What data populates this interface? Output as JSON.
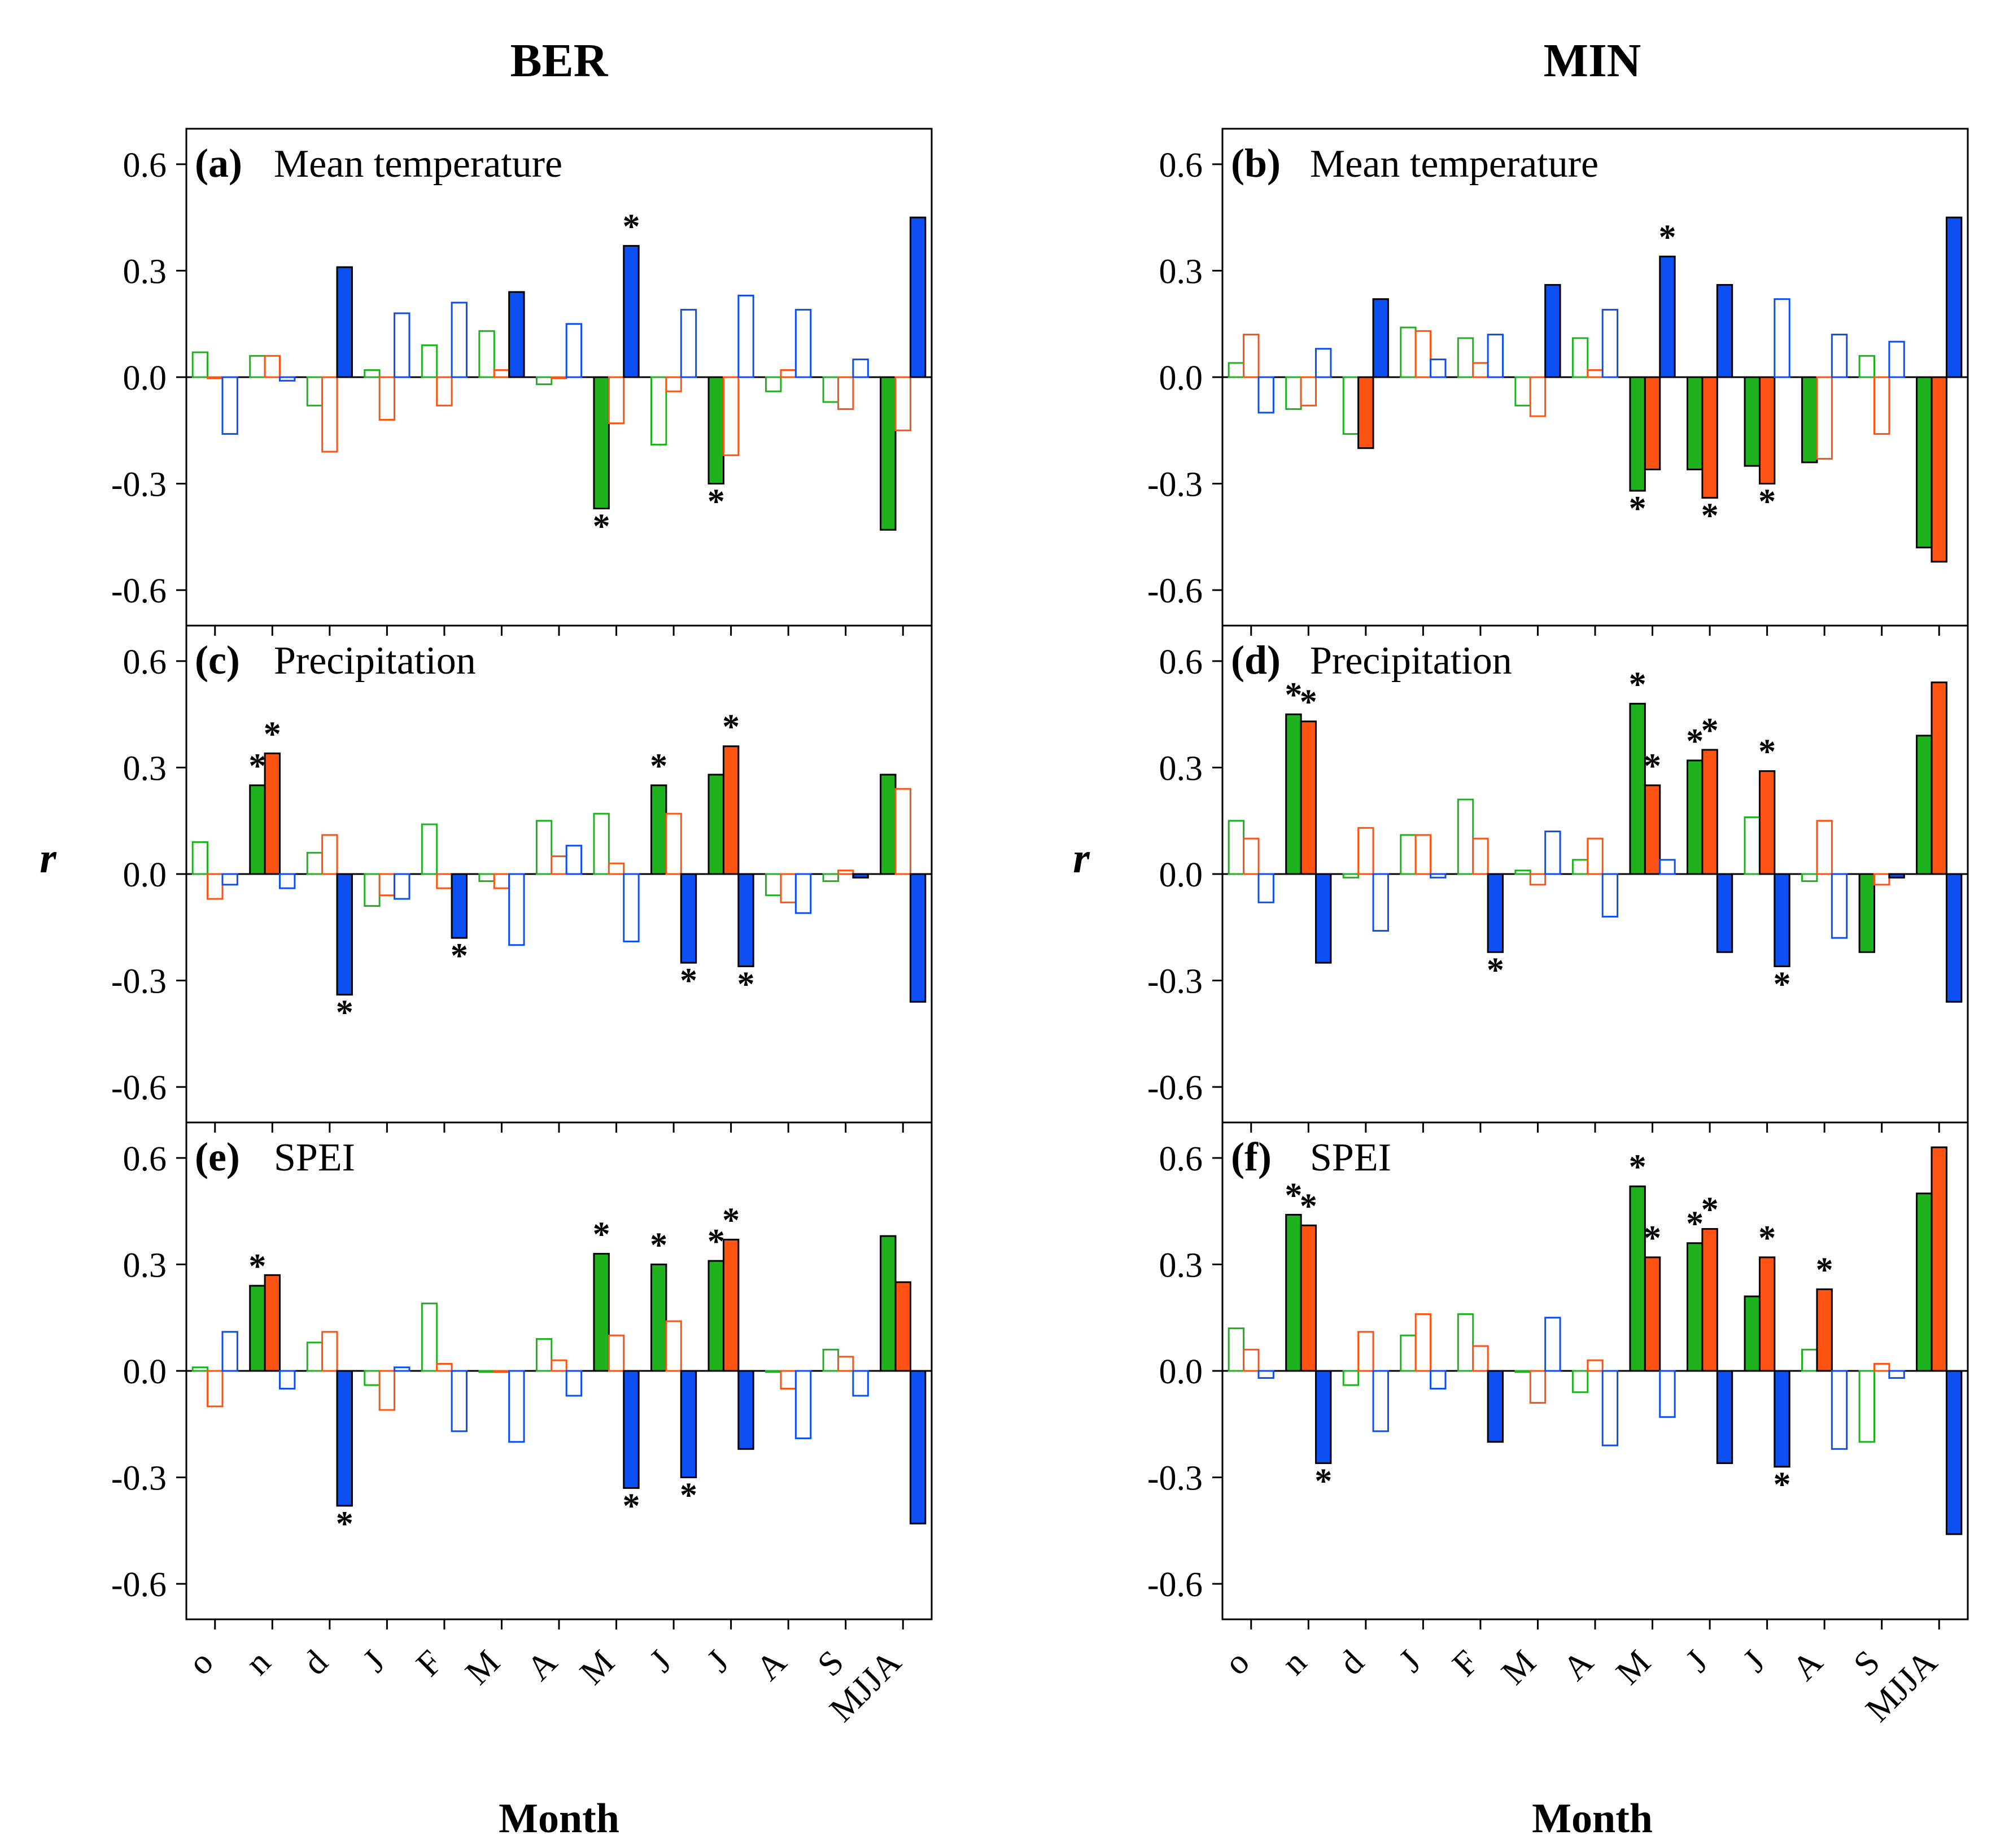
{
  "colors": {
    "green": "#1fb21f",
    "orange": "#ff5313",
    "blue": "#0c4ff2"
  },
  "columns": [
    "BER",
    "MIN"
  ],
  "xlabel": "Month",
  "ylabel": "r",
  "chart_data": [
    {
      "type": "bar",
      "id": "a",
      "letter": "(a)",
      "title": "Mean temperature",
      "column": "BER",
      "categories": [
        "o",
        "n",
        "d",
        "J",
        "F",
        "M",
        "A",
        "M",
        "J",
        "J",
        "A",
        "S",
        "MJJA"
      ],
      "ylim": [
        -0.7,
        0.7
      ],
      "yticks": [
        "0.6",
        "0.3",
        "0.0",
        "-0.3",
        "-0.6"
      ],
      "series": [
        {
          "color": "green",
          "values": [
            0.07,
            0.06,
            -0.08,
            0.02,
            0.09,
            0.13,
            -0.02,
            -0.37,
            -0.19,
            -0.3,
            -0.04,
            -0.07,
            -0.43
          ],
          "filled": [
            false,
            false,
            false,
            false,
            false,
            false,
            false,
            true,
            false,
            true,
            false,
            false,
            true
          ],
          "sig": [
            false,
            false,
            false,
            false,
            false,
            false,
            false,
            true,
            false,
            true,
            false,
            false,
            false
          ]
        },
        {
          "color": "orange",
          "values": [
            0.0,
            0.06,
            -0.21,
            -0.12,
            -0.08,
            0.02,
            0.0,
            -0.13,
            -0.04,
            -0.22,
            0.02,
            -0.09,
            -0.15
          ],
          "filled": [
            false,
            false,
            false,
            false,
            false,
            false,
            false,
            false,
            false,
            false,
            false,
            false,
            false
          ],
          "sig": [
            false,
            false,
            false,
            false,
            false,
            false,
            false,
            false,
            false,
            false,
            false,
            false,
            false
          ]
        },
        {
          "color": "blue",
          "values": [
            -0.16,
            -0.01,
            0.31,
            0.18,
            0.21,
            0.24,
            0.15,
            0.37,
            0.19,
            0.23,
            0.19,
            0.05,
            0.45
          ],
          "filled": [
            false,
            false,
            true,
            false,
            false,
            true,
            false,
            true,
            false,
            false,
            false,
            false,
            true
          ],
          "sig": [
            false,
            false,
            false,
            false,
            false,
            false,
            false,
            true,
            false,
            false,
            false,
            false,
            false
          ]
        }
      ]
    },
    {
      "type": "bar",
      "id": "b",
      "letter": "(b)",
      "title": "Mean temperature",
      "column": "MIN",
      "categories": [
        "o",
        "n",
        "d",
        "J",
        "F",
        "M",
        "A",
        "M",
        "J",
        "J",
        "A",
        "S",
        "MJJA"
      ],
      "ylim": [
        -0.7,
        0.7
      ],
      "yticks": [
        "0.6",
        "0.3",
        "0.0",
        "-0.3",
        "-0.6"
      ],
      "series": [
        {
          "color": "green",
          "values": [
            0.04,
            -0.09,
            -0.16,
            0.14,
            0.11,
            -0.08,
            0.11,
            -0.32,
            -0.26,
            -0.25,
            -0.24,
            0.06,
            -0.48
          ],
          "filled": [
            false,
            false,
            false,
            false,
            false,
            false,
            false,
            true,
            true,
            true,
            true,
            false,
            true
          ],
          "sig": [
            false,
            false,
            false,
            false,
            false,
            false,
            false,
            true,
            false,
            false,
            false,
            false,
            false
          ]
        },
        {
          "color": "orange",
          "values": [
            0.12,
            -0.08,
            -0.2,
            0.13,
            0.04,
            -0.11,
            0.02,
            -0.26,
            -0.34,
            -0.3,
            -0.23,
            -0.16,
            -0.52
          ],
          "filled": [
            false,
            false,
            true,
            false,
            false,
            false,
            false,
            true,
            true,
            true,
            false,
            false,
            true
          ],
          "sig": [
            false,
            false,
            false,
            false,
            false,
            false,
            false,
            false,
            true,
            true,
            false,
            false,
            false
          ]
        },
        {
          "color": "blue",
          "values": [
            -0.1,
            0.08,
            0.22,
            0.05,
            0.12,
            0.26,
            0.19,
            0.34,
            0.26,
            0.22,
            0.12,
            0.1,
            0.45
          ],
          "filled": [
            false,
            false,
            true,
            false,
            false,
            true,
            false,
            true,
            true,
            false,
            false,
            false,
            true
          ],
          "sig": [
            false,
            false,
            false,
            false,
            false,
            false,
            false,
            true,
            false,
            false,
            false,
            false,
            false
          ]
        }
      ]
    },
    {
      "type": "bar",
      "id": "c",
      "letter": "(c)",
      "title": "Precipitation",
      "column": "BER",
      "categories": [
        "o",
        "n",
        "d",
        "J",
        "F",
        "M",
        "A",
        "M",
        "J",
        "J",
        "A",
        "S",
        "MJJA"
      ],
      "ylim": [
        -0.7,
        0.7
      ],
      "yticks": [
        "0.6",
        "0.3",
        "0.0",
        "-0.3",
        "-0.6"
      ],
      "series": [
        {
          "color": "green",
          "values": [
            0.09,
            0.25,
            0.06,
            -0.09,
            0.14,
            -0.02,
            0.15,
            0.17,
            0.25,
            0.28,
            -0.06,
            -0.02,
            0.28
          ],
          "filled": [
            false,
            true,
            false,
            false,
            false,
            false,
            false,
            false,
            true,
            true,
            false,
            false,
            true
          ],
          "sig": [
            false,
            true,
            false,
            false,
            false,
            false,
            false,
            false,
            true,
            false,
            false,
            false,
            false
          ]
        },
        {
          "color": "orange",
          "values": [
            -0.07,
            0.34,
            0.11,
            -0.06,
            -0.04,
            -0.04,
            0.05,
            0.03,
            0.17,
            0.36,
            -0.08,
            0.01,
            0.24
          ],
          "filled": [
            false,
            true,
            false,
            false,
            false,
            false,
            false,
            false,
            false,
            true,
            false,
            false,
            false
          ],
          "sig": [
            false,
            true,
            false,
            false,
            false,
            false,
            false,
            false,
            false,
            true,
            false,
            false,
            false
          ]
        },
        {
          "color": "blue",
          "values": [
            -0.03,
            -0.04,
            -0.34,
            -0.07,
            -0.18,
            -0.2,
            0.08,
            -0.19,
            -0.25,
            -0.26,
            -0.11,
            -0.01,
            -0.36
          ],
          "filled": [
            false,
            false,
            true,
            false,
            true,
            false,
            false,
            false,
            true,
            true,
            false,
            true,
            true
          ],
          "sig": [
            false,
            false,
            true,
            false,
            true,
            false,
            false,
            false,
            true,
            true,
            false,
            false,
            false
          ]
        }
      ]
    },
    {
      "type": "bar",
      "id": "d",
      "letter": "(d)",
      "title": "Precipitation",
      "column": "MIN",
      "categories": [
        "o",
        "n",
        "d",
        "J",
        "F",
        "M",
        "A",
        "M",
        "J",
        "J",
        "A",
        "S",
        "MJJA"
      ],
      "ylim": [
        -0.7,
        0.7
      ],
      "yticks": [
        "0.6",
        "0.3",
        "0.0",
        "-0.3",
        "-0.6"
      ],
      "series": [
        {
          "color": "green",
          "values": [
            0.15,
            0.45,
            -0.01,
            0.11,
            0.21,
            0.01,
            0.04,
            0.48,
            0.32,
            0.16,
            -0.02,
            -0.22,
            0.39
          ],
          "filled": [
            false,
            true,
            false,
            false,
            false,
            false,
            false,
            true,
            true,
            false,
            false,
            true,
            true
          ],
          "sig": [
            false,
            true,
            false,
            false,
            false,
            false,
            false,
            true,
            true,
            false,
            false,
            false,
            false
          ]
        },
        {
          "color": "orange",
          "values": [
            0.1,
            0.43,
            0.13,
            0.11,
            0.1,
            -0.03,
            0.1,
            0.25,
            0.35,
            0.29,
            0.15,
            -0.03,
            0.54
          ],
          "filled": [
            false,
            true,
            false,
            false,
            false,
            false,
            false,
            true,
            true,
            true,
            false,
            false,
            true
          ],
          "sig": [
            false,
            true,
            false,
            false,
            false,
            false,
            false,
            true,
            true,
            true,
            false,
            false,
            false
          ]
        },
        {
          "color": "blue",
          "values": [
            -0.08,
            -0.25,
            -0.16,
            -0.01,
            -0.22,
            0.12,
            -0.12,
            0.04,
            -0.22,
            -0.26,
            -0.18,
            -0.01,
            -0.36
          ],
          "filled": [
            false,
            true,
            false,
            false,
            true,
            false,
            false,
            false,
            true,
            true,
            false,
            true,
            true
          ],
          "sig": [
            false,
            false,
            false,
            false,
            true,
            false,
            false,
            false,
            false,
            true,
            false,
            false,
            false
          ]
        }
      ]
    },
    {
      "type": "bar",
      "id": "e",
      "letter": "(e)",
      "title": "SPEI",
      "column": "BER",
      "categories": [
        "o",
        "n",
        "d",
        "J",
        "F",
        "M",
        "A",
        "M",
        "J",
        "J",
        "A",
        "S",
        "MJJA"
      ],
      "ylim": [
        -0.7,
        0.7
      ],
      "yticks": [
        "0.6",
        "0.3",
        "0.0",
        "-0.3",
        "-0.6"
      ],
      "series": [
        {
          "color": "green",
          "values": [
            0.01,
            0.24,
            0.08,
            -0.04,
            0.19,
            0.0,
            0.09,
            0.33,
            0.3,
            0.31,
            0.0,
            0.06,
            0.38
          ],
          "filled": [
            false,
            true,
            false,
            false,
            false,
            false,
            false,
            true,
            true,
            true,
            false,
            false,
            true
          ],
          "sig": [
            false,
            true,
            false,
            false,
            false,
            false,
            false,
            true,
            true,
            true,
            false,
            false,
            false
          ]
        },
        {
          "color": "orange",
          "values": [
            -0.1,
            0.27,
            0.11,
            -0.11,
            0.02,
            0.0,
            0.03,
            0.1,
            0.14,
            0.37,
            -0.05,
            0.04,
            0.25
          ],
          "filled": [
            false,
            true,
            false,
            false,
            false,
            false,
            false,
            false,
            false,
            true,
            false,
            false,
            true
          ],
          "sig": [
            false,
            false,
            false,
            false,
            false,
            false,
            false,
            false,
            false,
            true,
            false,
            false,
            false
          ]
        },
        {
          "color": "blue",
          "values": [
            0.11,
            -0.05,
            -0.38,
            0.01,
            -0.17,
            -0.2,
            -0.07,
            -0.33,
            -0.3,
            -0.22,
            -0.19,
            -0.07,
            -0.43
          ],
          "filled": [
            false,
            false,
            true,
            false,
            false,
            false,
            false,
            true,
            true,
            true,
            false,
            false,
            true
          ],
          "sig": [
            false,
            false,
            true,
            false,
            false,
            false,
            false,
            true,
            true,
            false,
            false,
            false,
            false
          ]
        }
      ]
    },
    {
      "type": "bar",
      "id": "f",
      "letter": "(f)",
      "title": "SPEI",
      "column": "MIN",
      "categories": [
        "o",
        "n",
        "d",
        "J",
        "F",
        "M",
        "A",
        "M",
        "J",
        "J",
        "A",
        "S",
        "MJJA"
      ],
      "ylim": [
        -0.7,
        0.7
      ],
      "yticks": [
        "0.6",
        "0.3",
        "0.0",
        "-0.3",
        "-0.6"
      ],
      "series": [
        {
          "color": "green",
          "values": [
            0.12,
            0.44,
            -0.04,
            0.1,
            0.16,
            0.0,
            -0.06,
            0.52,
            0.36,
            0.21,
            0.06,
            -0.2,
            0.5
          ],
          "filled": [
            false,
            true,
            false,
            false,
            false,
            false,
            false,
            true,
            true,
            true,
            false,
            false,
            true
          ],
          "sig": [
            false,
            true,
            false,
            false,
            false,
            false,
            false,
            true,
            true,
            false,
            false,
            false,
            false
          ]
        },
        {
          "color": "orange",
          "values": [
            0.06,
            0.41,
            0.11,
            0.16,
            0.07,
            -0.09,
            0.03,
            0.32,
            0.4,
            0.32,
            0.23,
            0.02,
            0.63
          ],
          "filled": [
            false,
            true,
            false,
            false,
            false,
            false,
            false,
            true,
            true,
            true,
            true,
            false,
            true
          ],
          "sig": [
            false,
            true,
            false,
            false,
            false,
            false,
            false,
            true,
            true,
            true,
            true,
            false,
            false
          ]
        },
        {
          "color": "blue",
          "values": [
            -0.02,
            -0.26,
            -0.17,
            -0.05,
            -0.2,
            0.15,
            -0.21,
            -0.13,
            -0.26,
            -0.27,
            -0.22,
            -0.02,
            -0.46
          ],
          "filled": [
            false,
            true,
            false,
            false,
            true,
            false,
            false,
            false,
            true,
            true,
            false,
            false,
            true
          ],
          "sig": [
            false,
            true,
            false,
            false,
            false,
            false,
            false,
            false,
            false,
            true,
            false,
            false,
            false
          ]
        }
      ]
    }
  ]
}
